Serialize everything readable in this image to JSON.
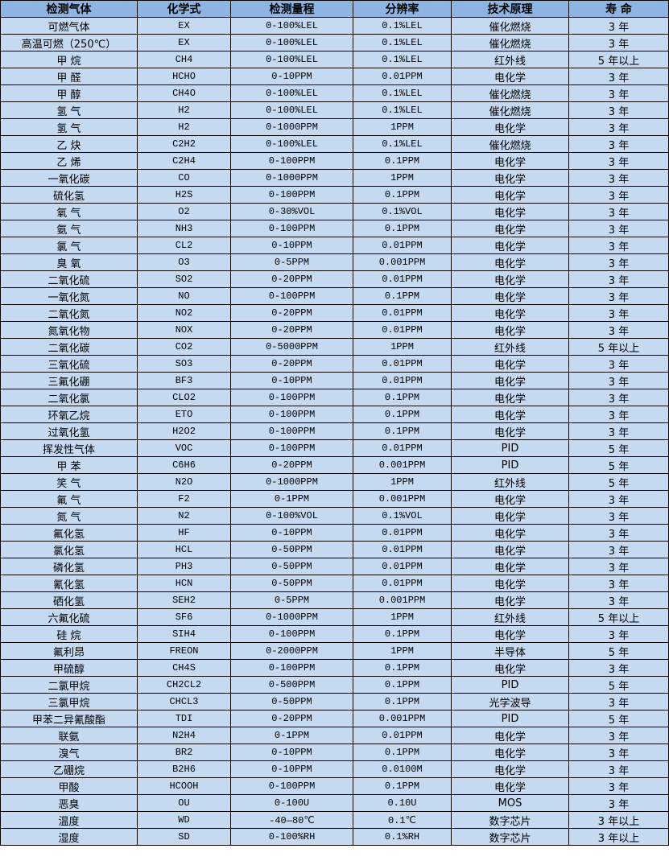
{
  "colors": {
    "header_bg": "#8db4e2",
    "row_bg": "#c5d9f1",
    "border": "#000000"
  },
  "table": {
    "headers": [
      "检测气体",
      "化学式",
      "检测量程",
      "分辨率",
      "技术原理",
      "寿 命"
    ],
    "rows": [
      [
        "可燃气体",
        "EX",
        "0-100%LEL",
        "0.1%LEL",
        "催化燃烧",
        "3 年"
      ],
      [
        "高温可燃（250℃）",
        "EX",
        "0-100%LEL",
        "0.1%LEL",
        "催化燃烧",
        "3 年"
      ],
      [
        "甲 烷",
        "CH4",
        "0-100%LEL",
        "0.1%LEL",
        "红外线",
        "5 年以上"
      ],
      [
        "甲 醛",
        "HCHO",
        "0-10PPM",
        "0.01PPM",
        "电化学",
        "3 年"
      ],
      [
        "甲 醇",
        "CH4O",
        "0-100%LEL",
        "0.1%LEL",
        "催化燃烧",
        "3 年"
      ],
      [
        "氢 气",
        "H2",
        "0-100%LEL",
        "0.1%LEL",
        "催化燃烧",
        "3 年"
      ],
      [
        "氢 气",
        "H2",
        "0-1000PPM",
        "1PPM",
        "电化学",
        "3 年"
      ],
      [
        "乙 炔",
        "C2H2",
        "0-100%LEL",
        "0.1%LEL",
        "催化燃烧",
        "3 年"
      ],
      [
        "乙 烯",
        "C2H4",
        "0-100PPM",
        "0.1PPM",
        "电化学",
        "3 年"
      ],
      [
        "一氧化碳",
        "CO",
        "0-1000PPM",
        "1PPM",
        "电化学",
        "3 年"
      ],
      [
        "硫化氢",
        "H2S",
        "0-100PPM",
        "0.1PPM",
        "电化学",
        "3 年"
      ],
      [
        "氧 气",
        "O2",
        "0-30%VOL",
        "0.1%VOL",
        "电化学",
        "3 年"
      ],
      [
        "氨 气",
        "NH3",
        "0-100PPM",
        "0.1PPM",
        "电化学",
        "3 年"
      ],
      [
        "氯 气",
        "CL2",
        "0-10PPM",
        "0.01PPM",
        "电化学",
        "3 年"
      ],
      [
        "臭 氧",
        "O3",
        "0-5PPM",
        "0.001PPM",
        "电化学",
        "3 年"
      ],
      [
        "二氧化硫",
        "SO2",
        "0-20PPM",
        "0.01PPM",
        "电化学",
        "3 年"
      ],
      [
        "一氧化氮",
        "NO",
        "0-100PPM",
        "0.1PPM",
        "电化学",
        "3 年"
      ],
      [
        "二氧化氮",
        "NO2",
        "0-20PPM",
        "0.01PPM",
        "电化学",
        "3 年"
      ],
      [
        "氮氧化物",
        "NOX",
        "0-20PPM",
        "0.01PPM",
        "电化学",
        "3 年"
      ],
      [
        "二氧化碳",
        "CO2",
        "0-5000PPM",
        "1PPM",
        "红外线",
        "5 年以上"
      ],
      [
        "三氧化硫",
        "SO3",
        "0-20PPM",
        "0.01PPM",
        "电化学",
        "3 年"
      ],
      [
        "三氟化硼",
        "BF3",
        "0-10PPM",
        "0.01PPM",
        "电化学",
        "3 年"
      ],
      [
        "二氧化氯",
        "CLO2",
        "0-100PPM",
        "0.1PPM",
        "电化学",
        "3 年"
      ],
      [
        "环氧乙烷",
        "ETO",
        "0-100PPM",
        "0.1PPM",
        "电化学",
        "3 年"
      ],
      [
        "过氧化氢",
        "H2O2",
        "0-100PPM",
        "0.1PPM",
        "电化学",
        "3 年"
      ],
      [
        "挥发性气体",
        "VOC",
        "0-100PPM",
        "0.01PPM",
        "PID",
        "5 年"
      ],
      [
        "甲 苯",
        "C6H6",
        "0-20PPM",
        "0.001PPM",
        "PID",
        "5 年"
      ],
      [
        "笑 气",
        "N2O",
        "0-1000PPM",
        "1PPM",
        "红外线",
        "5 年"
      ],
      [
        "氟 气",
        "F2",
        "0-1PPM",
        "0.001PPM",
        "电化学",
        "3 年"
      ],
      [
        "氮 气",
        "N2",
        "0-100%VOL",
        "0.1%VOL",
        "电化学",
        "3 年"
      ],
      [
        "氟化氢",
        "HF",
        "0-10PPM",
        "0.01PPM",
        "电化学",
        "3 年"
      ],
      [
        "氯化氢",
        "HCL",
        "0-50PPM",
        "0.01PPM",
        "电化学",
        "3 年"
      ],
      [
        "磷化氢",
        "PH3",
        "0-50PPM",
        "0.01PPM",
        "电化学",
        "3 年"
      ],
      [
        "氰化氢",
        "HCN",
        "0-50PPM",
        "0.01PPM",
        "电化学",
        "3 年"
      ],
      [
        "硒化氢",
        "SEH2",
        "0-5PPM",
        "0.001PPM",
        "电化学",
        "3 年"
      ],
      [
        "六氟化硫",
        "SF6",
        "0-1000PPM",
        "1PPM",
        "红外线",
        "5 年以上"
      ],
      [
        "硅 烷",
        "SIH4",
        "0-100PPM",
        "0.1PPM",
        "电化学",
        "3 年"
      ],
      [
        "氟利昂",
        "FREON",
        "0-2000PPM",
        "1PPM",
        "半导体",
        "5 年"
      ],
      [
        "甲硫醇",
        "CH4S",
        "0-100PPM",
        "0.1PPM",
        "电化学",
        "3 年"
      ],
      [
        "二氯甲烷",
        "CH2CL2",
        "0-500PPM",
        "0.1PPM",
        "PID",
        "5 年"
      ],
      [
        "三氯甲烷",
        "CHCL3",
        "0-50PPM",
        "0.1PPM",
        "光学波导",
        "3 年"
      ],
      [
        "甲苯二异氰酸酯",
        "TDI",
        "0-20PPM",
        "0.001PPM",
        "PID",
        "5 年"
      ],
      [
        "联氨",
        "N2H4",
        "0-1PPM",
        "0.01PPM",
        "电化学",
        "3 年"
      ],
      [
        "溴气",
        "BR2",
        "0-10PPM",
        "0.1PPM",
        "电化学",
        "3 年"
      ],
      [
        "乙硼烷",
        "B2H6",
        "0-10PPM",
        "0.0100M",
        "电化学",
        "3 年"
      ],
      [
        "甲酸",
        "HCOOH",
        "0-100PPM",
        "0.1PPM",
        "电化学",
        "3 年"
      ],
      [
        "恶臭",
        "OU",
        "0-100U",
        "0.10U",
        "MOS",
        "3 年"
      ],
      [
        "温度",
        "WD",
        "-40—80℃",
        "0.1℃",
        "数字芯片",
        "3 年以上"
      ],
      [
        "湿度",
        "SD",
        "0-100%RH",
        "0.1%RH",
        "数字芯片",
        "3 年以上"
      ]
    ]
  }
}
